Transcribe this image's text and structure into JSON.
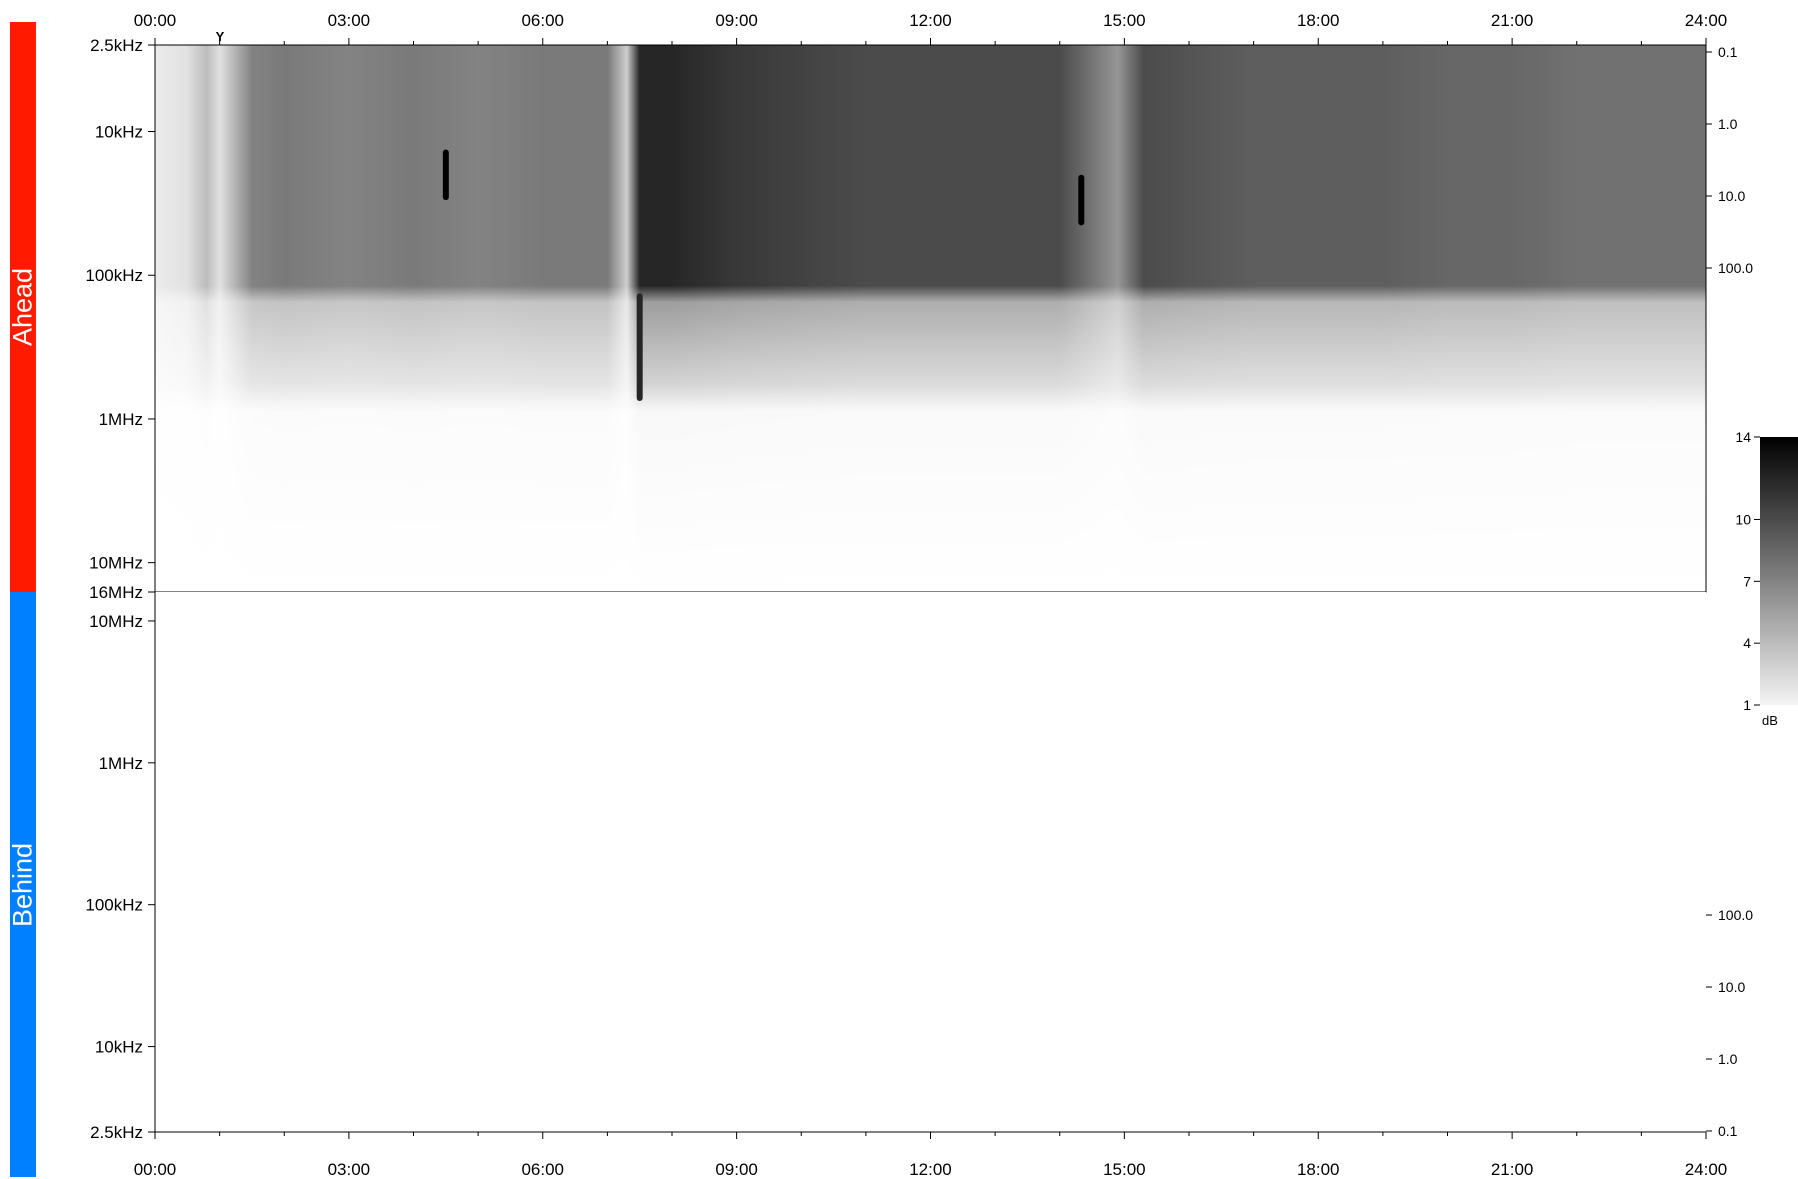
{
  "colors": {
    "ahead_bar": "#ff1a00",
    "behind_bar": "#0080ff",
    "plot_bg": "#ffffff",
    "axis": "#000000"
  },
  "side_labels": {
    "ahead": "Ahead",
    "behind": "Behind"
  },
  "event_marker": "Y",
  "chart_data": [
    {
      "type": "heatmap",
      "panel": "Ahead",
      "x_ticks": [
        "00:00",
        "03:00",
        "06:00",
        "09:00",
        "12:00",
        "15:00",
        "18:00",
        "21:00",
        "24:00"
      ],
      "x_range_hours": [
        0,
        24
      ],
      "y_scale": "log",
      "y_direction": "frequency increases downward",
      "y_ticks": [
        "2.5kHz",
        "10kHz",
        "100kHz",
        "1MHz",
        "10MHz",
        "16MHz"
      ],
      "y_range": [
        "2.5kHz",
        "16MHz"
      ],
      "right_ticks": [
        "0.1",
        "1.0",
        "10.0",
        "100.0"
      ],
      "marker": {
        "label": "Y",
        "time": "01:00"
      },
      "intensity_profile_by_hour": {
        "hours": [
          0,
          0.5,
          0.8,
          1.0,
          1.5,
          2,
          3,
          4,
          5,
          6,
          7,
          7.3,
          7.5,
          8,
          9,
          10,
          11,
          12,
          13,
          14,
          14.9,
          15.3,
          16,
          17,
          18,
          19,
          20,
          21,
          22,
          23,
          24
        ],
        "low_freq_db": [
          1.5,
          2,
          4,
          2,
          7,
          7.5,
          7,
          7.5,
          7,
          7.5,
          7.5,
          3,
          12,
          12,
          11,
          10.5,
          10,
          10,
          10,
          10,
          6,
          10,
          9.5,
          9,
          9,
          9,
          8.5,
          8.5,
          8,
          8,
          8
        ]
      },
      "notable_features": [
        {
          "time": "04:30",
          "freq": "20kHz",
          "level_db": 14
        },
        {
          "time": "07:30",
          "freq": "200kHz-500kHz",
          "level_db": 12
        },
        {
          "time": "14:20",
          "freq": "30kHz",
          "level_db": 14
        }
      ]
    },
    {
      "type": "heatmap",
      "panel": "Behind",
      "x_ticks": [
        "00:00",
        "03:00",
        "06:00",
        "09:00",
        "12:00",
        "15:00",
        "18:00",
        "21:00",
        "24:00"
      ],
      "x_range_hours": [
        0,
        24
      ],
      "y_scale": "log",
      "y_direction": "frequency increases upward",
      "y_ticks": [
        "2.5kHz",
        "10kHz",
        "100kHz",
        "1MHz",
        "10MHz"
      ],
      "y_range": [
        "2.5kHz",
        "16MHz"
      ],
      "right_ticks": [
        "0.1",
        "1.0",
        "10.0",
        "100.0"
      ],
      "values": "no signal (blank)"
    }
  ],
  "colorbar": {
    "ticks": [
      "14",
      "10",
      "7",
      "4",
      "1"
    ],
    "range": [
      1,
      14
    ],
    "unit": "dB",
    "colors": [
      "#f4f4f4",
      "#000000"
    ]
  }
}
